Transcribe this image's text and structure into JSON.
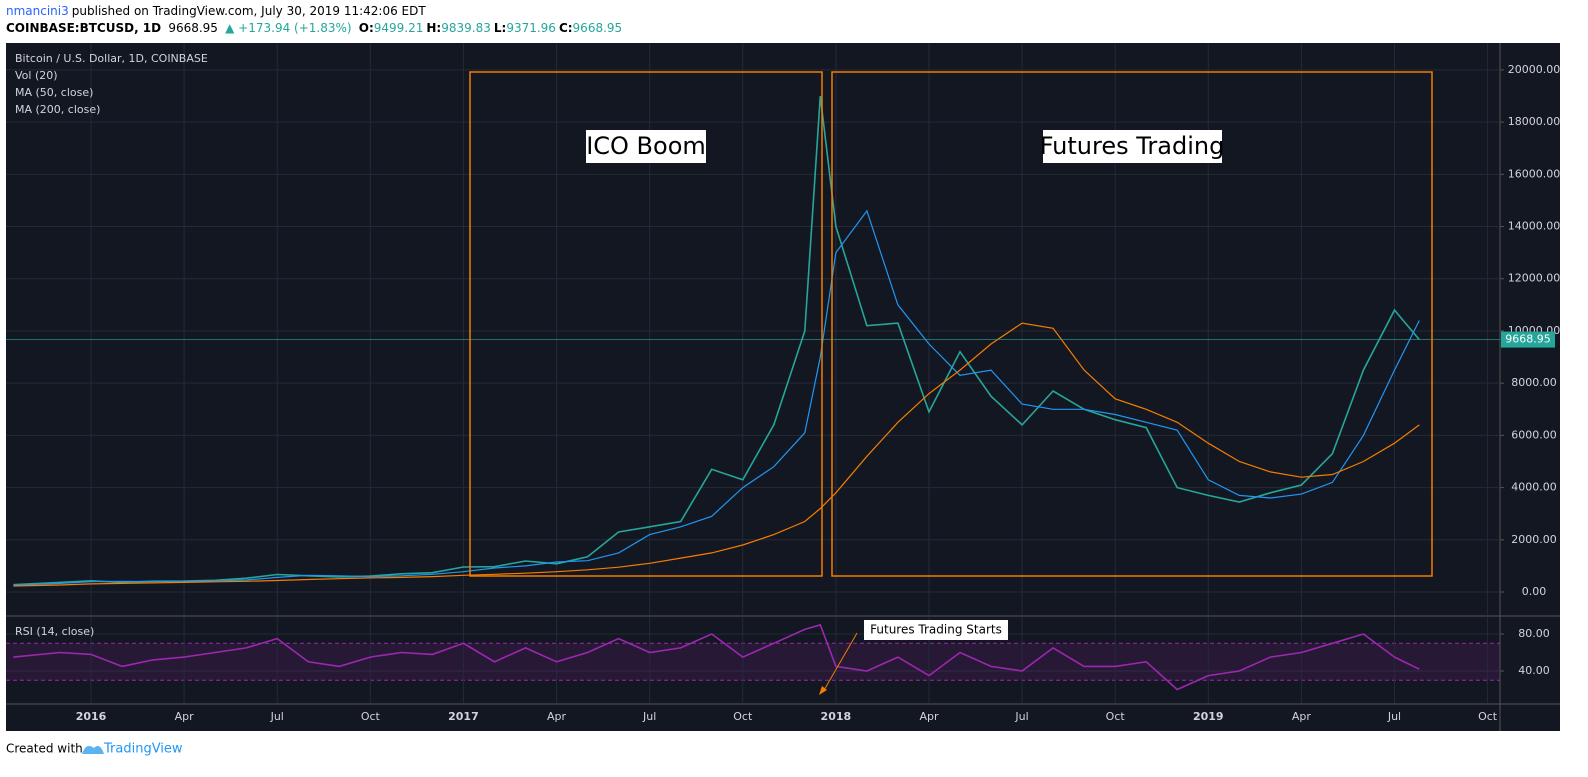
{
  "header": {
    "user": "nmancini3",
    "published": "published on TradingView.com, July 30, 2019 11:42:06 EDT",
    "symbol": "COINBASE:BTCUSD, 1D",
    "last": "9668.95",
    "change": "▲ +173.94 (+1.83%)",
    "ohlc": [
      {
        "label": "O:",
        "value": "9499.21"
      },
      {
        "label": "H:",
        "value": "9839.83"
      },
      {
        "label": "L:",
        "value": "9371.96"
      },
      {
        "label": "C:",
        "value": "9668.95"
      }
    ]
  },
  "footer": {
    "text": "Created with",
    "brand": "TradingView"
  },
  "chart_data": [
    {
      "type": "line",
      "title": "Bitcoin / U.S. Dollar, 1D, COINBASE",
      "volume_label": "Vol (20)",
      "x": [
        -2.5,
        -1,
        0,
        1,
        2,
        3,
        4,
        5,
        6,
        7,
        8,
        9,
        10,
        11,
        12,
        13,
        14,
        15,
        16,
        17,
        18,
        19,
        20,
        21,
        22,
        23,
        23.5,
        24,
        25,
        26,
        27,
        28,
        29,
        30,
        31,
        32,
        33,
        34,
        35,
        36,
        37,
        38,
        39,
        40,
        41,
        42,
        42.8
      ],
      "series": [
        {
          "name": "Bitcoin / U.S. Dollar, 1D, COINBASE",
          "color": "#26a69a",
          "values": [
            280,
            370,
            430,
            370,
            415,
            420,
            450,
            530,
            670,
            620,
            575,
            610,
            700,
            740,
            960,
            970,
            1190,
            1080,
            1350,
            2300,
            2500,
            2700,
            4700,
            4300,
            6400,
            10000,
            19000,
            14000,
            10200,
            10300,
            6900,
            9200,
            7500,
            6400,
            7700,
            7000,
            6600,
            6300,
            4000,
            3700,
            3450,
            3800,
            4100,
            5300,
            8500,
            10800,
            9668.95
          ]
        },
        {
          "name": "MA (50, close)",
          "color": "#2196f3",
          "values": [
            260,
            330,
            400,
            410,
            400,
            410,
            430,
            460,
            560,
            640,
            620,
            590,
            620,
            680,
            780,
            920,
            1000,
            1150,
            1200,
            1500,
            2200,
            2500,
            2900,
            4000,
            4800,
            6100,
            9000,
            13000,
            14600,
            11000,
            9500,
            8300,
            8500,
            7200,
            7000,
            7000,
            6800,
            6500,
            6200,
            4300,
            3700,
            3600,
            3750,
            4200,
            6000,
            8500,
            10400
          ]
        },
        {
          "name": "MA (200, close)",
          "color": "#f57c00",
          "values": [
            230,
            270,
            310,
            330,
            350,
            370,
            390,
            410,
            440,
            480,
            510,
            540,
            560,
            590,
            640,
            680,
            720,
            780,
            850,
            950,
            1100,
            1300,
            1500,
            1800,
            2200,
            2700,
            3200,
            3800,
            5200,
            6500,
            7600,
            8500,
            9500,
            10300,
            10100,
            8500,
            7400,
            7000,
            6500,
            5700,
            5000,
            4600,
            4400,
            4500,
            5000,
            5700,
            6400
          ]
        }
      ],
      "xlim": [
        -2.74,
        45.4
      ],
      "ylim": [
        -880,
        21030
      ],
      "yticks": [
        {
          "value": 0,
          "label": "0.00"
        },
        {
          "value": 2000,
          "label": "2000.00"
        },
        {
          "value": 4000,
          "label": "4000.00"
        },
        {
          "value": 6000,
          "label": "6000.00"
        },
        {
          "value": 8000,
          "label": "8000.00"
        },
        {
          "value": 10000,
          "label": "10000.00"
        },
        {
          "value": 12000,
          "label": "12000.00"
        },
        {
          "value": 14000,
          "label": "14000.00"
        },
        {
          "value": 16000,
          "label": "16000.00"
        },
        {
          "value": 18000,
          "label": "18000.00"
        },
        {
          "value": 20000,
          "label": "20000.00"
        }
      ],
      "grid": true,
      "annotations": [
        "ICO Boom",
        "Futures Trading"
      ]
    },
    {
      "type": "line",
      "x": [
        -2.5,
        -1,
        0,
        1,
        2,
        3,
        4,
        5,
        6,
        7,
        8,
        9,
        10,
        11,
        12,
        13,
        14,
        15,
        16,
        17,
        18,
        19,
        20,
        21,
        22,
        23,
        23.5,
        24,
        25,
        26,
        27,
        28,
        29,
        30,
        31,
        32,
        33,
        34,
        35,
        36,
        37,
        38,
        39,
        40,
        41,
        42,
        42.8
      ],
      "series": [
        {
          "name": "RSI (14, close)",
          "color": "#9c27b0",
          "values": [
            55,
            60,
            58,
            45,
            52,
            55,
            60,
            65,
            75,
            50,
            45,
            55,
            60,
            58,
            70,
            50,
            65,
            50,
            60,
            75,
            60,
            65,
            80,
            55,
            70,
            85,
            90,
            45,
            40,
            55,
            35,
            60,
            45,
            40,
            65,
            45,
            45,
            50,
            20,
            35,
            40,
            55,
            60,
            70,
            80,
            55,
            42
          ]
        }
      ],
      "xlim": [
        -2.74,
        45.4
      ],
      "ylim": [
        5.4,
        98.4
      ],
      "yticks": [
        {
          "value": 40,
          "label": "40.00"
        },
        {
          "value": 80,
          "label": "80.00"
        }
      ],
      "bands": [
        30,
        70
      ],
      "grid": true,
      "xticks": [
        {
          "value": 0,
          "label": "2016"
        },
        {
          "value": 3,
          "label": "Apr"
        },
        {
          "value": 6,
          "label": "Jul"
        },
        {
          "value": 9,
          "label": "Oct"
        },
        {
          "value": 12,
          "label": "2017"
        },
        {
          "value": 15,
          "label": "Apr"
        },
        {
          "value": 18,
          "label": "Jul"
        },
        {
          "value": 21,
          "label": "Oct"
        },
        {
          "value": 24,
          "label": "2018"
        },
        {
          "value": 27,
          "label": "Apr"
        },
        {
          "value": 30,
          "label": "Jul"
        },
        {
          "value": 33,
          "label": "Oct"
        },
        {
          "value": 36,
          "label": "2019"
        },
        {
          "value": 39,
          "label": "Apr"
        },
        {
          "value": 42,
          "label": "Jul"
        },
        {
          "value": 45,
          "label": "Oct"
        }
      ],
      "annotations": [
        "Futures Trading Starts"
      ]
    }
  ]
}
